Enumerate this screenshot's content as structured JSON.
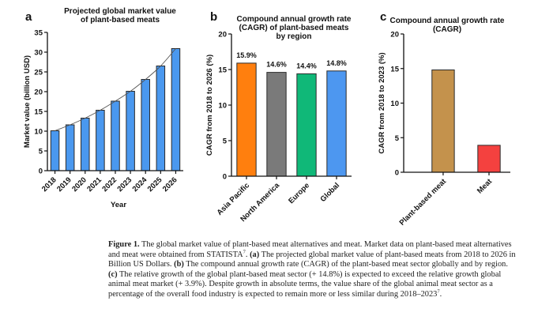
{
  "chart_data": [
    {
      "panel": "a",
      "type": "bar",
      "title": "Projected global market value of plant-based meats",
      "title_lines": [
        "Projected global market value",
        "of plant-based meats"
      ],
      "xlabel": "Year",
      "ylabel": "Market value (billion USD)",
      "categories": [
        "2018",
        "2019",
        "2020",
        "2021",
        "2022",
        "2023",
        "2024",
        "2025",
        "2026"
      ],
      "values": [
        10.1,
        11.6,
        13.3,
        15.3,
        17.6,
        20.1,
        23.1,
        26.5,
        30.9
      ],
      "ylim": [
        0,
        35
      ],
      "yticks": [
        0,
        5,
        10,
        15,
        20,
        25,
        30,
        35
      ],
      "bar_color": "#4a98ef",
      "trend_line": true,
      "grid": false
    },
    {
      "panel": "b",
      "type": "bar",
      "title": "Compound annual growth rate (CAGR) of plant-based meats by region",
      "title_lines": [
        "Compound annual growth rate",
        "(CAGR) of plant-based meats",
        "by region"
      ],
      "xlabel": "",
      "ylabel": "CAGR from 2018 to 2026 (%)",
      "categories": [
        "Asia Pacific",
        "North America",
        "Europe",
        "Global"
      ],
      "values": [
        15.9,
        14.6,
        14.4,
        14.8
      ],
      "data_labels": [
        "15.9%",
        "14.6%",
        "14.4%",
        "14.8%"
      ],
      "ylim": [
        0,
        20
      ],
      "yticks": [
        0,
        5,
        10,
        15,
        20
      ],
      "bar_colors": [
        "#ff7f0e",
        "#7a7a7a",
        "#10b878",
        "#4d97f0"
      ],
      "grid": false
    },
    {
      "panel": "c",
      "type": "bar",
      "title": "Compound annual growth rate (CAGR)",
      "title_lines": [
        "Compound annual growth rate",
        "(CAGR)"
      ],
      "xlabel": "",
      "ylabel": "CAGR from 2018 to 2023 (%)",
      "categories": [
        "Plant-based meat",
        "Meat"
      ],
      "values": [
        14.8,
        3.9
      ],
      "ylim": [
        0,
        20
      ],
      "yticks": [
        0,
        5,
        10,
        15,
        20
      ],
      "bar_colors": [
        "#c4924c",
        "#f4413f"
      ],
      "grid": false
    }
  ],
  "caption": {
    "label": "Figure 1.",
    "text_1": " The global market value of plant-based meat alternatives and meat. Market data on plant-based meat alternatives and meat were obtained from STATISTA",
    "ref_1": "7",
    "text_2": ". ",
    "a_tag": "(a)",
    "text_a": " The projected global market value of plant-based meats from 2018 to 2026 in Billion US Dollars. ",
    "b_tag": "(b)",
    "text_b": " The compound annual growth rate (CAGR) of the plant-based meat sector globally and by region. ",
    "c_tag": "(c)",
    "text_c": " The relative growth of the global plant-based meat sector (+ 14.8%) is expected to exceed the relative growth global animal meat market (+ 3.9%). Despite growth in absolute terms, the value share of the global animal meat sector as a percentage of the overall food industry is expected to remain more or less similar during 2018–2023",
    "ref_2": "7",
    "text_end": "."
  }
}
